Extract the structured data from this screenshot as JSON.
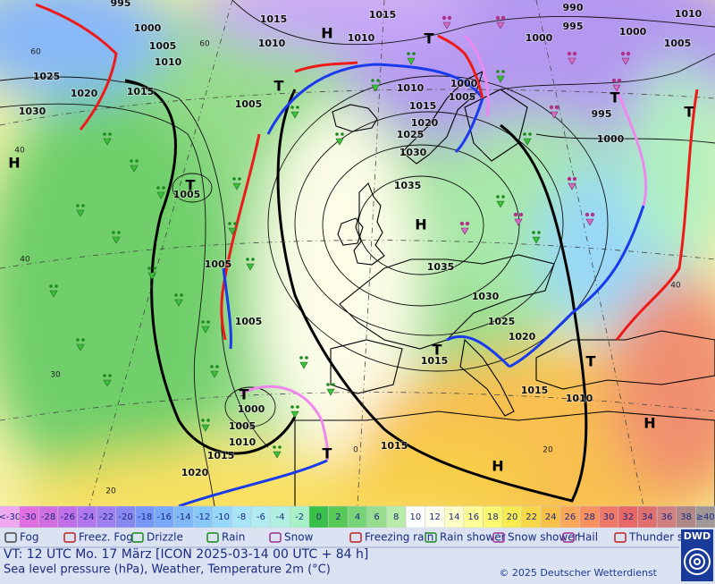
{
  "map": {
    "pressure_labels": [
      "995",
      "1000",
      "1005",
      "1010",
      "1015",
      "1015",
      "1010",
      "1010",
      "1025",
      "1020",
      "1015",
      "1030",
      "1005",
      "1010",
      "1000",
      "1005",
      "1015",
      "1020",
      "1025",
      "1030",
      "1035",
      "1005",
      "1005",
      "1035",
      "1030",
      "1025",
      "1020",
      "1005",
      "1015",
      "1015",
      "1010",
      "1000",
      "1005",
      "1010",
      "1015",
      "1015",
      "1020",
      "990",
      "995",
      "1000",
      "1000",
      "1005",
      "1010",
      "995",
      "1000"
    ],
    "isotherm_labels": [
      "60",
      "60",
      "40",
      "40",
      "30",
      "20",
      "0",
      "20",
      "40"
    ],
    "centers": [
      "H",
      "H",
      "T",
      "T",
      "T",
      "H",
      "T",
      "T",
      "T",
      "T",
      "T",
      "T",
      "H",
      "H"
    ]
  },
  "legend": {
    "scale": [
      {
        "label": "<-30",
        "color": "#f0a8f0"
      },
      {
        "label": -30,
        "color": "#e070e0"
      },
      {
        "label": -28,
        "color": "#d070e0"
      },
      {
        "label": -26,
        "color": "#c070e8"
      },
      {
        "label": -24,
        "color": "#b078ec"
      },
      {
        "label": -22,
        "color": "#a080f0"
      },
      {
        "label": -20,
        "color": "#8888f0"
      },
      {
        "label": -18,
        "color": "#7898f8"
      },
      {
        "label": -16,
        "color": "#78a8f8"
      },
      {
        "label": -14,
        "color": "#80b8f8"
      },
      {
        "label": -12,
        "color": "#88c8f8"
      },
      {
        "label": -10,
        "color": "#98d8f8"
      },
      {
        "label": -8,
        "color": "#a8e4f8"
      },
      {
        "label": -6,
        "color": "#b0ecf0"
      },
      {
        "label": -4,
        "color": "#b0f0e0"
      },
      {
        "label": -2,
        "color": "#a8f0c8"
      },
      {
        "label": 0,
        "color": "#38c048"
      },
      {
        "label": 2,
        "color": "#58c858"
      },
      {
        "label": 4,
        "color": "#78d478"
      },
      {
        "label": 6,
        "color": "#98dc90"
      },
      {
        "label": 8,
        "color": "#b8eca8"
      },
      {
        "label": 10,
        "color": "#ffffff"
      },
      {
        "label": 12,
        "color": "#fffff0"
      },
      {
        "label": 14,
        "color": "#ffffc8"
      },
      {
        "label": 16,
        "color": "#ffff98"
      },
      {
        "label": 18,
        "color": "#fcf870"
      },
      {
        "label": 20,
        "color": "#f8ec50"
      },
      {
        "label": 22,
        "color": "#f8d848"
      },
      {
        "label": 24,
        "color": "#f8c048"
      },
      {
        "label": 26,
        "color": "#f8a858"
      },
      {
        "label": 28,
        "color": "#f89060"
      },
      {
        "label": 30,
        "color": "#f07868"
      },
      {
        "label": 32,
        "color": "#e86868"
      },
      {
        "label": 34,
        "color": "#e07070"
      },
      {
        "label": 36,
        "color": "#d08080"
      },
      {
        "label": 38,
        "color": "#b08888"
      },
      {
        "label": "≥40",
        "color": "#a09898"
      }
    ],
    "weather": [
      "Fog",
      "Freez. Fog",
      "Drizzle",
      "Rain",
      "Snow",
      "Freezing rain",
      "Rain shower",
      "Snow shower",
      "Hail",
      "Thunder storm"
    ]
  },
  "footer": {
    "valid_time": "VT: 12 UTC Mo.  17 März [ICON 2025-03-14  00 UTC + 84 h]",
    "fields": "Sea level pressure (hPa), Weather, Temperature 2m (°C)",
    "copyright": "© 2025 Deutscher Wetterdienst",
    "logo": "DWD"
  }
}
